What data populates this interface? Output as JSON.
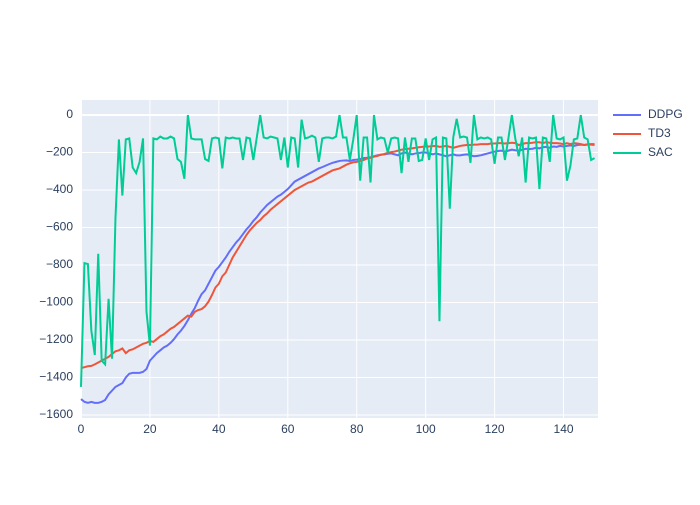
{
  "chart_data": {
    "type": "line",
    "x": [
      0,
      1,
      2,
      3,
      4,
      5,
      6,
      7,
      8,
      9,
      10,
      11,
      12,
      13,
      14,
      15,
      16,
      17,
      18,
      19,
      20,
      21,
      22,
      23,
      24,
      25,
      26,
      27,
      28,
      29,
      30,
      31,
      32,
      33,
      34,
      35,
      36,
      37,
      38,
      39,
      40,
      41,
      42,
      43,
      44,
      45,
      46,
      47,
      48,
      49,
      50,
      51,
      52,
      53,
      54,
      55,
      56,
      57,
      58,
      59,
      60,
      61,
      62,
      63,
      64,
      65,
      66,
      67,
      68,
      69,
      70,
      71,
      72,
      73,
      74,
      75,
      76,
      77,
      78,
      79,
      80,
      81,
      82,
      83,
      84,
      85,
      86,
      87,
      88,
      89,
      90,
      91,
      92,
      93,
      94,
      95,
      96,
      97,
      98,
      99,
      100,
      101,
      102,
      103,
      104,
      105,
      106,
      107,
      108,
      109,
      110,
      111,
      112,
      113,
      114,
      115,
      116,
      117,
      118,
      119,
      120,
      121,
      122,
      123,
      124,
      125,
      126,
      127,
      128,
      129,
      130,
      131,
      132,
      133,
      134,
      135,
      136,
      137,
      138,
      139,
      140,
      141,
      142,
      143,
      144,
      145,
      146,
      147,
      148,
      149
    ],
    "series": [
      {
        "name": "DDPG",
        "color": "#636efa",
        "values": [
          -1515,
          -1530,
          -1535,
          -1530,
          -1535,
          -1535,
          -1530,
          -1520,
          -1490,
          -1470,
          -1450,
          -1440,
          -1430,
          -1400,
          -1380,
          -1375,
          -1375,
          -1375,
          -1370,
          -1355,
          -1310,
          -1290,
          -1270,
          -1255,
          -1240,
          -1230,
          -1215,
          -1195,
          -1170,
          -1150,
          -1125,
          -1095,
          -1060,
          -1030,
          -990,
          -955,
          -935,
          -900,
          -865,
          -830,
          -810,
          -785,
          -760,
          -730,
          -705,
          -680,
          -660,
          -635,
          -610,
          -590,
          -565,
          -545,
          -520,
          -500,
          -480,
          -465,
          -450,
          -435,
          -425,
          -410,
          -395,
          -375,
          -355,
          -345,
          -335,
          -325,
          -315,
          -305,
          -295,
          -285,
          -278,
          -270,
          -262,
          -255,
          -250,
          -245,
          -243,
          -242,
          -245,
          -240,
          -238,
          -235,
          -230,
          -228,
          -225,
          -220,
          -215,
          -212,
          -210,
          -207,
          -205,
          -210,
          -215,
          -205,
          -200,
          -205,
          -210,
          -205,
          -203,
          -200,
          -200,
          -205,
          -210,
          -205,
          -210,
          -215,
          -220,
          -215,
          -210,
          -215,
          -215,
          -212,
          -210,
          -215,
          -220,
          -218,
          -215,
          -210,
          -205,
          -200,
          -195,
          -192,
          -190,
          -195,
          -190,
          -185,
          -188,
          -190,
          -185,
          -180,
          -182,
          -180,
          -175,
          -178,
          -172,
          -170,
          -175,
          -168,
          -170,
          -165,
          -168,
          -165,
          -162,
          -165,
          -160,
          -158,
          -160,
          -156,
          -155,
          -155
        ]
      },
      {
        "name": "TD3",
        "color": "#EF553B",
        "values": [
          -1350,
          -1345,
          -1340,
          -1338,
          -1330,
          -1320,
          -1310,
          -1300,
          -1290,
          -1275,
          -1260,
          -1255,
          -1245,
          -1270,
          -1255,
          -1250,
          -1240,
          -1230,
          -1220,
          -1215,
          -1205,
          -1210,
          -1195,
          -1180,
          -1170,
          -1155,
          -1140,
          -1130,
          -1115,
          -1100,
          -1085,
          -1070,
          -1075,
          -1050,
          -1040,
          -1035,
          -1020,
          -995,
          -960,
          -920,
          -900,
          -860,
          -840,
          -800,
          -760,
          -730,
          -700,
          -670,
          -640,
          -615,
          -595,
          -575,
          -560,
          -540,
          -525,
          -505,
          -490,
          -475,
          -460,
          -445,
          -430,
          -415,
          -400,
          -390,
          -380,
          -370,
          -360,
          -355,
          -345,
          -335,
          -325,
          -315,
          -305,
          -295,
          -290,
          -285,
          -275,
          -265,
          -258,
          -252,
          -250,
          -245,
          -240,
          -232,
          -228,
          -222,
          -218,
          -212,
          -208,
          -202,
          -198,
          -195,
          -190,
          -185,
          -182,
          -180,
          -178,
          -175,
          -172,
          -170,
          -168,
          -168,
          -166,
          -165,
          -170,
          -168,
          -165,
          -170,
          -175,
          -170,
          -165,
          -162,
          -160,
          -160,
          -158,
          -158,
          -155,
          -155,
          -155,
          -152,
          -152,
          -150,
          -150,
          -152,
          -150,
          -148,
          -150,
          -160,
          -155,
          -150,
          -150,
          -148,
          -145,
          -145,
          -150,
          -145,
          -148,
          -150,
          -150,
          -152,
          -155,
          -150,
          -155,
          -150,
          -152,
          -155,
          -160,
          -158,
          -158,
          -160
        ]
      },
      {
        "name": "SAC",
        "color": "#00cc96",
        "values": [
          -1450,
          -790,
          -795,
          -1150,
          -1280,
          -740,
          -1310,
          -1330,
          -980,
          -1300,
          -550,
          -130,
          -430,
          -130,
          -125,
          -280,
          -310,
          -250,
          -125,
          -1050,
          -1230,
          -125,
          -130,
          -115,
          -125,
          -125,
          -115,
          -125,
          -235,
          -250,
          -340,
          0,
          -125,
          -130,
          -130,
          -130,
          -235,
          -245,
          -125,
          -120,
          -125,
          -285,
          -120,
          -125,
          -120,
          -125,
          -125,
          -240,
          -120,
          -125,
          -240,
          -120,
          0,
          -120,
          -125,
          -115,
          -120,
          -125,
          -240,
          -120,
          -280,
          -120,
          -125,
          -280,
          -25,
          -125,
          -120,
          -110,
          -120,
          -250,
          -125,
          -120,
          -120,
          -125,
          -115,
          0,
          -120,
          -120,
          -240,
          -130,
          0,
          -350,
          -120,
          -120,
          -360,
          0,
          -130,
          -120,
          -125,
          -200,
          -125,
          -120,
          -125,
          -310,
          -120,
          -250,
          -125,
          -125,
          -245,
          -240,
          -125,
          -240,
          -130,
          -120,
          -1100,
          -120,
          -125,
          -500,
          -120,
          -20,
          -120,
          -115,
          -120,
          -255,
          0,
          -130,
          -120,
          -125,
          -120,
          -130,
          -260,
          -120,
          -120,
          -240,
          -125,
          0,
          -125,
          -220,
          -120,
          -360,
          -120,
          -125,
          -120,
          -395,
          -120,
          -125,
          -250,
          0,
          -125,
          -130,
          -120,
          -350,
          -270,
          -130,
          -125,
          0,
          -120,
          -130,
          -240,
          -230
        ]
      }
    ],
    "xlim": [
      0,
      150
    ],
    "ylim": [
      -1616,
      80
    ],
    "xticks": [
      0,
      20,
      40,
      60,
      80,
      100,
      120,
      140
    ],
    "yticks": [
      {
        "value": -1600,
        "label": "−1600"
      },
      {
        "value": -1400,
        "label": "−1400"
      },
      {
        "value": -1200,
        "label": "−1200"
      },
      {
        "value": -1000,
        "label": "−1000"
      },
      {
        "value": -800,
        "label": "−800"
      },
      {
        "value": -600,
        "label": "−600"
      },
      {
        "value": -400,
        "label": "−400"
      },
      {
        "value": -200,
        "label": "−200"
      },
      0
    ],
    "grid": true,
    "legend": "right",
    "background": "#e5ecf6"
  }
}
